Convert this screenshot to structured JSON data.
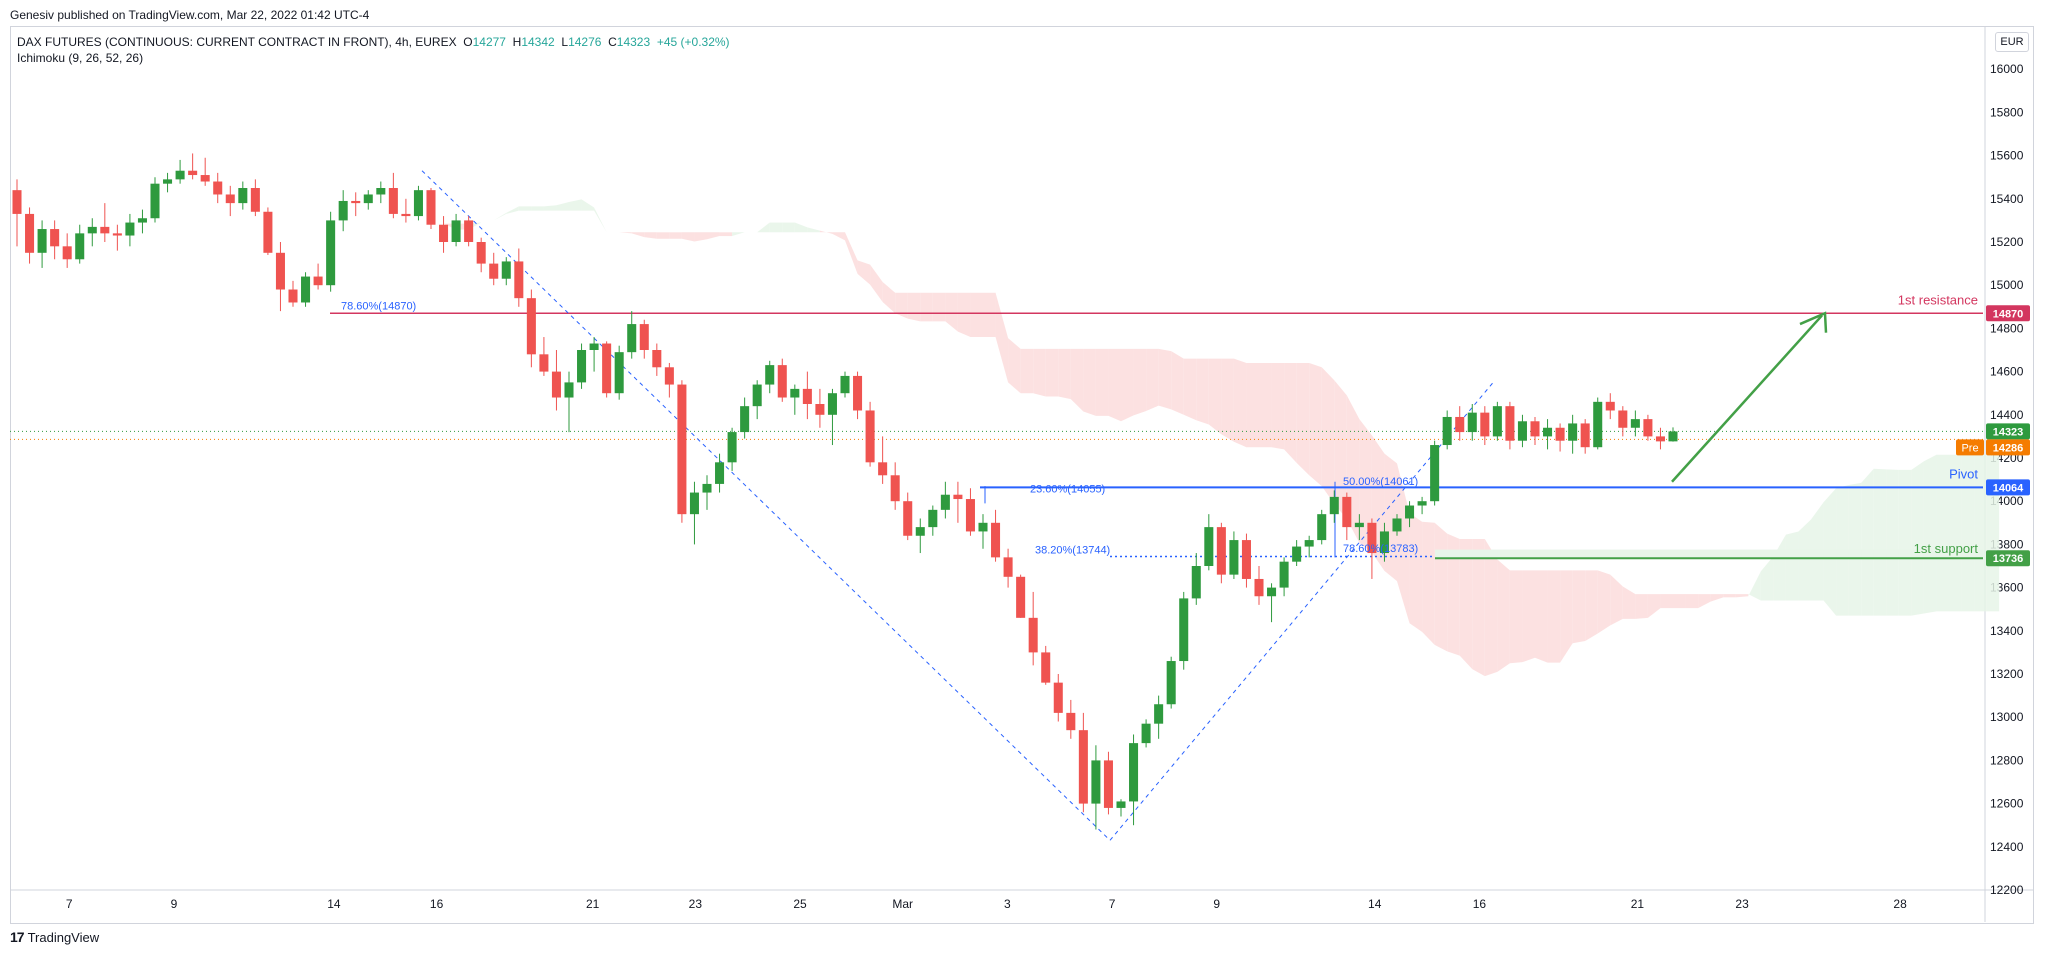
{
  "header": {
    "published": "Genesiv published on TradingView.com, Mar 22, 2022 01:42 UTC-4"
  },
  "legend": {
    "symbol": "DAX FUTURES (CONTINUOUS: CURRENT CONTRACT IN FRONT), 4h, EUREX",
    "o_label": "O",
    "o_value": "14277",
    "h_label": "H",
    "h_value": "14342",
    "l_label": "L",
    "l_value": "14276",
    "c_label": "C",
    "c_value": "14323",
    "change": "+45 (+0.32%)",
    "indicator": "Ichimoku (9, 26, 52, 26)"
  },
  "currency": "EUR",
  "footer": {
    "brand": "TradingView",
    "logo_icon": "tradingview-logo-icon"
  },
  "colors": {
    "up": "#26a69a",
    "up_candle": "#2e9a3e",
    "down": "#ef5350",
    "resistance": "#d3365f",
    "pivot": "#2962ff",
    "support": "#43a047",
    "pre": "#f57c00",
    "cloud_red": "#fcdcdc",
    "cloud_green": "#e6f4e8",
    "fib": "#2962ff"
  },
  "chart_data": {
    "type": "candlestick",
    "ylim": [
      12200,
      16200
    ],
    "y_ticks": [
      12200,
      12400,
      12600,
      12800,
      13000,
      13200,
      13400,
      13600,
      13800,
      14000,
      14200,
      14400,
      14600,
      14800,
      15000,
      15200,
      15400,
      15600,
      15800,
      16000
    ],
    "y_tick_labels": [
      "12200",
      "12400",
      "12600",
      "12800",
      "13000",
      "13200",
      "13400",
      "13600",
      "13800",
      "14000",
      "14200",
      "14400",
      "14600",
      "14800",
      "15000",
      "15200",
      "15400",
      "15600",
      "15800",
      "16000"
    ],
    "x_ticks": [
      {
        "label": "7",
        "pos": 0.03
      },
      {
        "label": "9",
        "pos": 0.083
      },
      {
        "label": "14",
        "pos": 0.164
      },
      {
        "label": "16",
        "pos": 0.216
      },
      {
        "label": "21",
        "pos": 0.295
      },
      {
        "label": "23",
        "pos": 0.347
      },
      {
        "label": "25",
        "pos": 0.4
      },
      {
        "label": "Mar",
        "pos": 0.452
      },
      {
        "label": "3",
        "pos": 0.505
      },
      {
        "label": "7",
        "pos": 0.558
      },
      {
        "label": "9",
        "pos": 0.611
      },
      {
        "label": "14",
        "pos": 0.691
      },
      {
        "label": "16",
        "pos": 0.744
      },
      {
        "label": "21",
        "pos": 0.824
      },
      {
        "label": "23",
        "pos": 0.877
      },
      {
        "label": "28",
        "pos": 0.957
      }
    ],
    "candles": [
      [
        15440,
        15490,
        15180,
        15330
      ],
      [
        15330,
        15360,
        15100,
        15150
      ],
      [
        15150,
        15300,
        15080,
        15260
      ],
      [
        15260,
        15300,
        15120,
        15180
      ],
      [
        15180,
        15240,
        15080,
        15120
      ],
      [
        15120,
        15280,
        15100,
        15240
      ],
      [
        15240,
        15310,
        15180,
        15270
      ],
      [
        15270,
        15380,
        15200,
        15240
      ],
      [
        15240,
        15280,
        15160,
        15230
      ],
      [
        15230,
        15330,
        15180,
        15290
      ],
      [
        15290,
        15350,
        15240,
        15310
      ],
      [
        15310,
        15500,
        15290,
        15470
      ],
      [
        15470,
        15520,
        15430,
        15490
      ],
      [
        15490,
        15580,
        15470,
        15530
      ],
      [
        15530,
        15610,
        15490,
        15510
      ],
      [
        15510,
        15590,
        15460,
        15480
      ],
      [
        15480,
        15520,
        15380,
        15420
      ],
      [
        15420,
        15460,
        15320,
        15380
      ],
      [
        15380,
        15480,
        15350,
        15450
      ],
      [
        15450,
        15490,
        15320,
        15340
      ],
      [
        15340,
        15360,
        15140,
        15150
      ],
      [
        15150,
        15200,
        14880,
        14980
      ],
      [
        14980,
        15020,
        14900,
        14920
      ],
      [
        14920,
        15060,
        14900,
        15040
      ],
      [
        15040,
        15100,
        14980,
        15000
      ],
      [
        15000,
        15340,
        14970,
        15300
      ],
      [
        15300,
        15440,
        15250,
        15390
      ],
      [
        15390,
        15430,
        15320,
        15380
      ],
      [
        15380,
        15440,
        15350,
        15420
      ],
      [
        15420,
        15480,
        15380,
        15450
      ],
      [
        15450,
        15520,
        15310,
        15330
      ],
      [
        15330,
        15400,
        15290,
        15320
      ],
      [
        15320,
        15460,
        15300,
        15440
      ],
      [
        15440,
        15450,
        15260,
        15280
      ],
      [
        15280,
        15320,
        15150,
        15200
      ],
      [
        15200,
        15330,
        15180,
        15300
      ],
      [
        15300,
        15320,
        15180,
        15200
      ],
      [
        15200,
        15220,
        15060,
        15100
      ],
      [
        15100,
        15150,
        15000,
        15030
      ],
      [
        15030,
        15130,
        15000,
        15110
      ],
      [
        15110,
        15170,
        14900,
        14940
      ],
      [
        14940,
        14980,
        14620,
        14680
      ],
      [
        14680,
        14760,
        14580,
        14600
      ],
      [
        14600,
        14700,
        14420,
        14480
      ],
      [
        14480,
        14600,
        14320,
        14550
      ],
      [
        14550,
        14730,
        14520,
        14700
      ],
      [
        14700,
        14760,
        14600,
        14730
      ],
      [
        14730,
        14740,
        14480,
        14500
      ],
      [
        14500,
        14720,
        14470,
        14690
      ],
      [
        14690,
        14880,
        14660,
        14820
      ],
      [
        14820,
        14840,
        14660,
        14700
      ],
      [
        14700,
        14730,
        14580,
        14620
      ],
      [
        14620,
        14640,
        14480,
        14540
      ],
      [
        14540,
        14560,
        13900,
        13940
      ],
      [
        13940,
        14090,
        13800,
        14040
      ],
      [
        14040,
        14120,
        13960,
        14080
      ],
      [
        14080,
        14220,
        14040,
        14180
      ],
      [
        14180,
        14340,
        14140,
        14320
      ],
      [
        14320,
        14480,
        14290,
        14440
      ],
      [
        14440,
        14560,
        14380,
        14540
      ],
      [
        14540,
        14650,
        14500,
        14630
      ],
      [
        14630,
        14660,
        14460,
        14480
      ],
      [
        14480,
        14540,
        14400,
        14520
      ],
      [
        14520,
        14600,
        14380,
        14450
      ],
      [
        14450,
        14520,
        14340,
        14400
      ],
      [
        14400,
        14520,
        14260,
        14500
      ],
      [
        14500,
        14600,
        14480,
        14580
      ],
      [
        14580,
        14600,
        14380,
        14420
      ],
      [
        14420,
        14460,
        14160,
        14180
      ],
      [
        14180,
        14300,
        14080,
        14120
      ],
      [
        14120,
        14180,
        13960,
        14000
      ],
      [
        14000,
        14040,
        13820,
        13840
      ],
      [
        13840,
        13920,
        13760,
        13880
      ],
      [
        13880,
        13980,
        13840,
        13960
      ],
      [
        13960,
        14090,
        13920,
        14030
      ],
      [
        14030,
        14090,
        13900,
        14010
      ],
      [
        14010,
        14060,
        13840,
        13860
      ],
      [
        13860,
        13940,
        13780,
        13900
      ],
      [
        13900,
        13960,
        13720,
        13740
      ],
      [
        13740,
        13780,
        13600,
        13650
      ],
      [
        13650,
        13660,
        13460,
        13460
      ],
      [
        13460,
        13580,
        13240,
        13300
      ],
      [
        13300,
        13330,
        13150,
        13160
      ],
      [
        13160,
        13200,
        12980,
        13020
      ],
      [
        13020,
        13080,
        12900,
        12940
      ],
      [
        12940,
        13020,
        12560,
        12600
      ],
      [
        12600,
        12870,
        12480,
        12800
      ],
      [
        12800,
        12840,
        12550,
        12580
      ],
      [
        12580,
        12620,
        12540,
        12610
      ],
      [
        12610,
        12920,
        12500,
        12880
      ],
      [
        12880,
        12990,
        12860,
        12970
      ],
      [
        12970,
        13100,
        12900,
        13060
      ],
      [
        13060,
        13280,
        13040,
        13260
      ],
      [
        13260,
        13580,
        13220,
        13550
      ],
      [
        13550,
        13760,
        13520,
        13700
      ],
      [
        13700,
        13940,
        13680,
        13880
      ],
      [
        13880,
        13900,
        13620,
        13660
      ],
      [
        13660,
        13860,
        13640,
        13820
      ],
      [
        13820,
        13850,
        13600,
        13640
      ],
      [
        13640,
        13700,
        13520,
        13560
      ],
      [
        13560,
        13620,
        13440,
        13600
      ],
      [
        13600,
        13740,
        13560,
        13720
      ],
      [
        13720,
        13820,
        13700,
        13790
      ],
      [
        13790,
        13840,
        13740,
        13820
      ],
      [
        13820,
        13960,
        13800,
        13940
      ],
      [
        13940,
        14050,
        13900,
        14020
      ],
      [
        14020,
        14040,
        13820,
        13880
      ],
      [
        13880,
        13940,
        13820,
        13900
      ],
      [
        13900,
        13920,
        13640,
        13760
      ],
      [
        13760,
        13900,
        13720,
        13860
      ],
      [
        13860,
        13940,
        13840,
        13920
      ],
      [
        13920,
        14000,
        13880,
        13980
      ],
      [
        13980,
        14020,
        13940,
        14000
      ],
      [
        14000,
        14280,
        13980,
        14260
      ],
      [
        14260,
        14420,
        14240,
        14390
      ],
      [
        14390,
        14440,
        14280,
        14320
      ],
      [
        14320,
        14450,
        14280,
        14410
      ],
      [
        14410,
        14440,
        14260,
        14300
      ],
      [
        14300,
        14460,
        14280,
        14440
      ],
      [
        14440,
        14460,
        14240,
        14280
      ],
      [
        14280,
        14400,
        14250,
        14370
      ],
      [
        14370,
        14390,
        14260,
        14300
      ],
      [
        14300,
        14380,
        14240,
        14340
      ],
      [
        14340,
        14360,
        14230,
        14280
      ],
      [
        14280,
        14400,
        14220,
        14360
      ],
      [
        14360,
        14380,
        14220,
        14250
      ],
      [
        14250,
        14480,
        14240,
        14460
      ],
      [
        14460,
        14500,
        14380,
        14420
      ],
      [
        14420,
        14440,
        14300,
        14340
      ],
      [
        14340,
        14420,
        14300,
        14380
      ],
      [
        14380,
        14400,
        14280,
        14300
      ],
      [
        14300,
        14340,
        14240,
        14277
      ],
      [
        14277,
        14342,
        14276,
        14323
      ]
    ],
    "levels": [
      {
        "name": "1st resistance",
        "value": 14870,
        "label": "14870",
        "color": "#d3365f"
      },
      {
        "name": "Pivot",
        "value": 14064,
        "label": "14064",
        "color": "#2962ff"
      },
      {
        "name": "1st support",
        "value": 13736,
        "label": "13736",
        "color": "#43a047"
      }
    ],
    "price_tags": [
      {
        "label": "14323",
        "value": 14323,
        "color": "#2e9a3e"
      },
      {
        "label": "14286",
        "value": 14286,
        "color": "#f57c00",
        "prefix": "Pre"
      }
    ],
    "fib_labels": [
      {
        "text": "78.60%(14870)",
        "value": 14870
      },
      {
        "text": "23.60%(14055)",
        "value": 14055
      },
      {
        "text": "38.20%(13744)",
        "value": 13744
      },
      {
        "text": "50.00%(14061)",
        "value": 14061
      },
      {
        "text": "78.60%(13783)",
        "value": 13783
      }
    ],
    "annotation_labels": {
      "resistance": "1st resistance",
      "pivot": "Pivot",
      "support": "1st support"
    }
  }
}
